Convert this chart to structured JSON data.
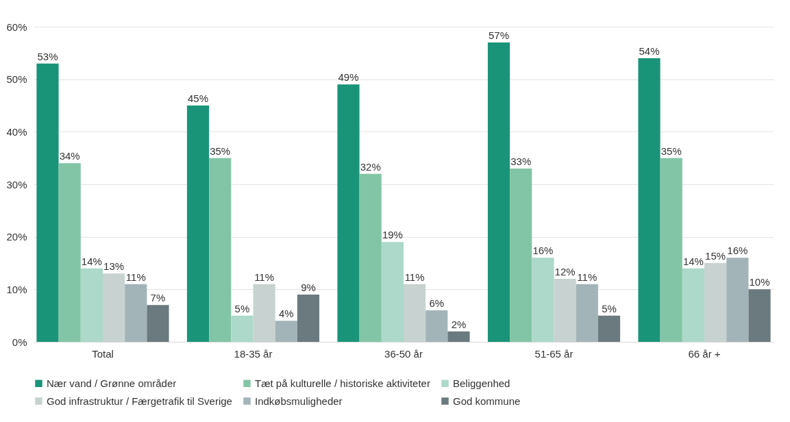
{
  "chart_data": {
    "type": "bar",
    "categories": [
      "Total",
      "18-35 år",
      "36-50 år",
      "51-65 år",
      "66 år +"
    ],
    "series": [
      {
        "name": "Nær vand / Grønne områder",
        "color": "#1a9479",
        "values": [
          53,
          45,
          49,
          57,
          54
        ],
        "value_labels": [
          "53%",
          "45%",
          "49%",
          "57%",
          "54%"
        ]
      },
      {
        "name": "Tæt på kulturelle / historiske aktiviteter",
        "color": "#82c5a6",
        "values": [
          34,
          35,
          32,
          33,
          35
        ],
        "value_labels": [
          "34%",
          "35%",
          "32%",
          "33%",
          "35%"
        ]
      },
      {
        "name": "Beliggenhed",
        "color": "#acd9c9",
        "values": [
          14,
          5,
          19,
          16,
          14
        ],
        "value_labels": [
          "14%",
          "5%",
          "19%",
          "16%",
          "14%"
        ]
      },
      {
        "name": "God infrastruktur / Færgetrafik til Sverige",
        "color": "#c8d2d0",
        "values": [
          13,
          11,
          11,
          12,
          15
        ],
        "value_labels": [
          "13%",
          "11%",
          "11%",
          "12%",
          "15%"
        ]
      },
      {
        "name": "Indkøbsmuligheder",
        "color": "#a3b4b8",
        "values": [
          11,
          4,
          6,
          11,
          16
        ],
        "value_labels": [
          "11%",
          "4%",
          "6%",
          "11%",
          "16%"
        ]
      },
      {
        "name": "God kommune",
        "color": "#6b7a7e",
        "values": [
          7,
          9,
          2,
          5,
          10
        ],
        "value_labels": [
          "7%",
          "9%",
          "2%",
          "5%",
          "10%"
        ]
      }
    ],
    "ylim": [
      0,
      60
    ],
    "yticks": [
      {
        "value": 0,
        "label": "0%"
      },
      {
        "value": 10,
        "label": "10%"
      },
      {
        "value": 20,
        "label": "20%"
      },
      {
        "value": 30,
        "label": "30%"
      },
      {
        "value": 40,
        "label": "40%"
      },
      {
        "value": 50,
        "label": "50%"
      },
      {
        "value": 60,
        "label": "60%"
      }
    ],
    "grid": "y",
    "legend": "bottom"
  }
}
